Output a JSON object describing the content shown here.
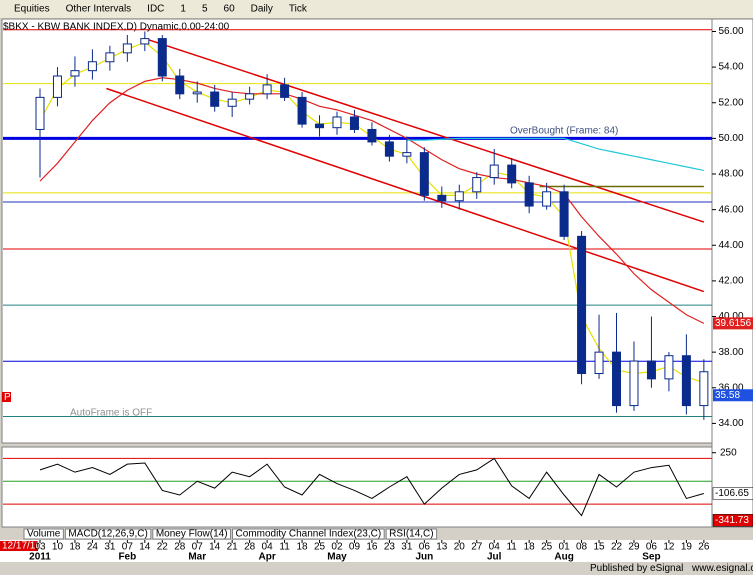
{
  "chart_data": {
    "type": "candlestick",
    "toolbar": [
      "Equities",
      "Other Intervals",
      "IDC",
      "1",
      "5",
      "60",
      "Daily",
      "Tick"
    ],
    "title": "$BKX - KBW BANK INDEX,D) Dynamic,0.00-24:00",
    "annotation": "OverBought (Frame: 84)",
    "autoframe": "AutoFrame is OFF",
    "marker": "P",
    "start_date": "12/17/10",
    "categories": [
      "03",
      "10",
      "18",
      "24",
      "31",
      "07",
      "14",
      "22",
      "28",
      "07",
      "14",
      "21",
      "28",
      "04",
      "11",
      "18",
      "25",
      "02",
      "09",
      "16",
      "23",
      "31",
      "06",
      "13",
      "20",
      "27",
      "04",
      "11",
      "18",
      "25",
      "01",
      "08",
      "15",
      "22",
      "29",
      "06",
      "12",
      "19",
      "26"
    ],
    "months": [
      "2011",
      null,
      null,
      null,
      null,
      "Feb",
      null,
      null,
      null,
      "Mar",
      null,
      null,
      null,
      "Apr",
      null,
      null,
      null,
      "May",
      null,
      null,
      null,
      null,
      "Jun",
      null,
      null,
      null,
      "Jul",
      null,
      null,
      null,
      "Aug",
      null,
      null,
      null,
      null,
      "Sep",
      null,
      null,
      null
    ],
    "open": [
      50.5,
      52.3,
      53.5,
      53.8,
      54.3,
      54.8,
      55.3,
      55.6,
      53.5,
      52.5,
      52.6,
      51.8,
      52.2,
      52.5,
      53.0,
      52.3,
      50.8,
      50.6,
      51.2,
      50.5,
      49.8,
      49.0,
      49.2,
      46.8,
      46.5,
      47.0,
      47.8,
      48.5,
      47.5,
      46.2,
      47.0,
      44.5,
      36.8,
      38.0,
      35.0,
      37.5,
      36.5,
      37.8,
      35.0
    ],
    "high": [
      52.8,
      54.0,
      54.6,
      55.0,
      55.2,
      55.8,
      56.0,
      55.8,
      53.9,
      53.2,
      53.0,
      52.6,
      52.9,
      53.6,
      53.4,
      52.6,
      51.3,
      51.5,
      51.6,
      50.9,
      50.2,
      50.1,
      49.5,
      47.3,
      47.4,
      48.1,
      49.4,
      48.9,
      47.9,
      47.5,
      47.4,
      44.8,
      40.1,
      40.2,
      38.6,
      40.0,
      38.0,
      39.0,
      37.6
    ],
    "low": [
      47.8,
      51.8,
      52.9,
      53.3,
      53.8,
      54.3,
      54.9,
      53.2,
      52.2,
      52.0,
      51.5,
      51.2,
      51.9,
      52.2,
      52.1,
      50.6,
      50.1,
      50.2,
      50.3,
      49.6,
      48.7,
      48.6,
      46.5,
      46.1,
      46.0,
      46.6,
      47.4,
      47.2,
      45.8,
      46.0,
      44.3,
      36.2,
      36.5,
      34.6,
      34.7,
      36.0,
      35.8,
      34.5,
      34.2
    ],
    "close": [
      52.3,
      53.5,
      53.8,
      54.3,
      54.8,
      55.3,
      55.6,
      53.5,
      52.5,
      52.6,
      51.8,
      52.2,
      52.5,
      53.0,
      52.3,
      50.8,
      50.6,
      51.2,
      50.5,
      49.8,
      49.0,
      49.2,
      46.8,
      46.5,
      47.0,
      47.8,
      48.5,
      47.5,
      46.2,
      47.0,
      44.5,
      36.8,
      38.0,
      35.0,
      37.5,
      36.5,
      37.8,
      35.0,
      36.9
    ],
    "up_color": "#ffffff",
    "down_color": "#0a2a8c",
    "series": [
      {
        "name": "MA short",
        "color": "#e8e000",
        "values": [
          51.0,
          52.8,
          53.6,
          54.0,
          54.5,
          55.0,
          55.4,
          54.6,
          53.2,
          52.6,
          52.2,
          52.0,
          52.3,
          52.7,
          52.6,
          51.5,
          50.8,
          50.9,
          50.8,
          50.1,
          49.4,
          49.1,
          47.8,
          46.8,
          46.8,
          47.4,
          48.1,
          47.9,
          46.9,
          46.7,
          45.6,
          40.0,
          38.2,
          37.0,
          36.8,
          36.9,
          37.2,
          36.6,
          36.3
        ]
      },
      {
        "name": "MA long",
        "color": "#e02020",
        "values": [
          47.6,
          48.6,
          49.8,
          51.0,
          52.0,
          52.7,
          53.2,
          53.4,
          53.3,
          53.1,
          52.8,
          52.6,
          52.5,
          52.5,
          52.5,
          52.2,
          51.8,
          51.6,
          51.3,
          51.0,
          50.5,
          50.0,
          49.4,
          48.8,
          48.3,
          48.0,
          47.8,
          47.7,
          47.5,
          47.3,
          46.9,
          45.6,
          44.5,
          43.5,
          42.4,
          41.5,
          40.8,
          40.1,
          39.6156
        ]
      },
      {
        "name": "MA 200",
        "color": "#20c8d8",
        "values": [
          null,
          null,
          null,
          null,
          null,
          null,
          null,
          null,
          null,
          null,
          null,
          null,
          null,
          null,
          null,
          null,
          null,
          null,
          null,
          null,
          null,
          49.9,
          49.9,
          49.95,
          50.0,
          50.0,
          50.0,
          50.0,
          50.0,
          50.0,
          50.0,
          49.7,
          49.4,
          49.2,
          49.0,
          48.8,
          48.6,
          48.4,
          48.2
        ]
      }
    ],
    "levels": [
      {
        "value": 56.1,
        "color": "#e00000",
        "width": 1
      },
      {
        "value": 53.07,
        "color": "#e8e000",
        "width": 1
      },
      {
        "value": 50.0,
        "color": "#0000e0",
        "width": 3
      },
      {
        "value": 46.94,
        "color": "#e8e000",
        "width": 1
      },
      {
        "value": 46.43,
        "color": "#2030c0",
        "width": 1
      },
      {
        "value": 43.79,
        "color": "#e00000",
        "width": 1
      },
      {
        "value": 40.64,
        "color": "#208080",
        "width": 1
      },
      {
        "value": 37.49,
        "color": "#0000e0",
        "width": 1
      },
      {
        "value": 34.39,
        "color": "#208080",
        "width": 1
      }
    ],
    "trendlines": [
      {
        "index": [
          6,
          38
        ],
        "values": [
          55.6,
          45.3
        ],
        "color": "#e00000"
      },
      {
        "index": [
          3.8,
          38
        ],
        "values": [
          52.8,
          41.4
        ],
        "color": "#e00000"
      },
      {
        "index": [
          28.6,
          38
        ],
        "values": [
          47.3,
          47.3
        ],
        "color": "#6a6a00"
      }
    ],
    "axis_labels": [
      {
        "value": 39.6156,
        "color": "#e02020"
      },
      {
        "value": 35.58,
        "color": "#2050e0"
      }
    ],
    "ylim": [
      32.9,
      56.7
    ],
    "yticks": [
      {
        "value": 56,
        "label": "56.00"
      },
      {
        "value": 54,
        "label": "54.00"
      },
      {
        "value": 52,
        "label": "52.00"
      },
      {
        "value": 50,
        "label": "50.00"
      },
      {
        "value": 48,
        "label": "48.00"
      },
      {
        "value": 46,
        "label": "46.00"
      },
      {
        "value": 44,
        "label": "44.00"
      },
      {
        "value": 42,
        "label": "42.00"
      },
      {
        "value": 40,
        "label": "40.00"
      },
      {
        "value": 38,
        "label": "38.00"
      },
      {
        "value": 36,
        "label": "36.00"
      },
      {
        "value": 34,
        "label": "34.00"
      }
    ],
    "cci": {
      "name": "Commodity Channel Index(23,C)",
      "color": "#000000",
      "values": [
        100,
        150,
        80,
        120,
        60,
        150,
        160,
        -80,
        -120,
        0,
        -60,
        80,
        40,
        150,
        -50,
        -120,
        60,
        -20,
        -80,
        -150,
        -50,
        40,
        -200,
        -60,
        60,
        100,
        200,
        -40,
        -150,
        80,
        -120,
        -300,
        60,
        -50,
        80,
        120,
        140,
        -150,
        -106.65
      ],
      "levels": [
        {
          "value": 200,
          "color": "#e00000"
        },
        {
          "value": 0,
          "color": "#20a020"
        },
        {
          "value": -200,
          "color": "#e00000"
        }
      ],
      "ylim": [
        -400,
        300
      ],
      "yticks": [
        250
      ],
      "axis_labels": [
        {
          "value": -106.65,
          "color": "#ffffff"
        },
        {
          "value": -341.73,
          "color": "#e00000"
        }
      ]
    },
    "tabs": [
      "Volume",
      "MACD(12,26,9,C)",
      "Money Flow(14)",
      "Commodity Channel Index(23,C)",
      "RSI(14,C)"
    ],
    "footer": [
      "Published by eSignal",
      "www.esignal.com"
    ]
  }
}
